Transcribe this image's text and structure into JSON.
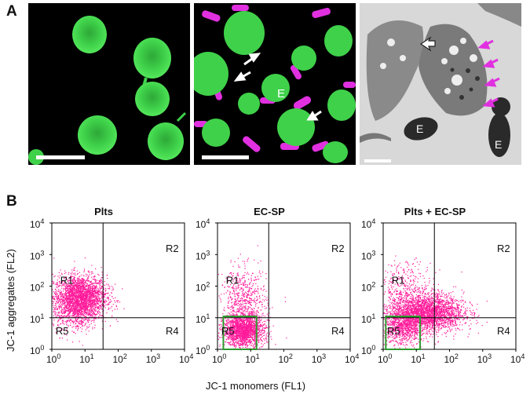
{
  "panel_a": {
    "label": "A",
    "images": [
      {
        "annotations": []
      },
      {
        "annotations": [
          "E"
        ]
      },
      {
        "annotations": [
          "E",
          "E"
        ]
      }
    ]
  },
  "panel_b": {
    "label": "B"
  },
  "colors": {
    "events": "#ff1a9a",
    "gate": "#2e9a2e",
    "fluor_green": "#3fd14a",
    "fluor_magenta": "#e030e0"
  },
  "chart_data": [
    {
      "type": "scatter",
      "title": "Plts",
      "xlabel": "JC-1 monomers (FL1)",
      "ylabel": "JC-1 aggregates (FL2)",
      "x_scale": "log",
      "y_scale": "log",
      "xlim": [
        1,
        10000
      ],
      "ylim": [
        1,
        10000
      ],
      "x_ticks": [
        "10^0",
        "10^1",
        "10^2",
        "10^3",
        "10^4"
      ],
      "y_ticks": [
        "10^0",
        "10^1",
        "10^2",
        "10^3",
        "10^4"
      ],
      "quadrant_x": 35,
      "quadrant_y": 10,
      "regions": [
        "R1",
        "R2",
        "R4",
        "R5"
      ],
      "gate": null,
      "clusters": [
        {
          "cx": 7,
          "cy": 45,
          "sx": 0.4,
          "sy": 0.35,
          "n": 2600
        },
        {
          "cx": 5,
          "cy": 12,
          "sx": 0.35,
          "sy": 0.3,
          "n": 300
        }
      ]
    },
    {
      "type": "scatter",
      "title": "EC-SP",
      "xlabel": "JC-1 monomers (FL1)",
      "ylabel": "JC-1 aggregates (FL2)",
      "x_scale": "log",
      "y_scale": "log",
      "xlim": [
        1,
        10000
      ],
      "ylim": [
        1,
        10000
      ],
      "x_ticks": [
        "10^0",
        "10^1",
        "10^2",
        "10^3",
        "10^4"
      ],
      "y_ticks": [
        "10^0",
        "10^1",
        "10^2",
        "10^3",
        "10^4"
      ],
      "quadrant_x": 35,
      "quadrant_y": 10,
      "regions": [
        "R1",
        "R2",
        "R4",
        "R5"
      ],
      "gate": {
        "x": [
          1.5,
          15
        ],
        "y": [
          1.0,
          11
        ]
      },
      "clusters": [
        {
          "cx": 6,
          "cy": 4,
          "sx": 0.3,
          "sy": 0.25,
          "n": 1800
        },
        {
          "cx": 6,
          "cy": 30,
          "sx": 0.35,
          "sy": 0.55,
          "n": 700
        }
      ]
    },
    {
      "type": "scatter",
      "title": "Plts + EC-SP",
      "xlabel": "JC-1 monomers (FL1)",
      "ylabel": "JC-1 aggregates (FL2)",
      "x_scale": "log",
      "y_scale": "log",
      "xlim": [
        1,
        10000
      ],
      "ylim": [
        1,
        10000
      ],
      "x_ticks": [
        "10^0",
        "10^1",
        "10^2",
        "10^3",
        "10^4"
      ],
      "y_ticks": [
        "10^0",
        "10^1",
        "10^2",
        "10^3",
        "10^4"
      ],
      "quadrant_x": 35,
      "quadrant_y": 10,
      "regions": [
        "R1",
        "R2",
        "R4",
        "R5"
      ],
      "gate": {
        "x": [
          1.2,
          13
        ],
        "y": [
          1.0,
          11
        ]
      },
      "clusters": [
        {
          "cx": 20,
          "cy": 15,
          "sx": 0.55,
          "sy": 0.3,
          "n": 2600
        },
        {
          "cx": 4,
          "cy": 5,
          "sx": 0.3,
          "sy": 0.3,
          "n": 800
        },
        {
          "cx": 5,
          "cy": 80,
          "sx": 0.4,
          "sy": 0.45,
          "n": 400
        }
      ]
    }
  ]
}
